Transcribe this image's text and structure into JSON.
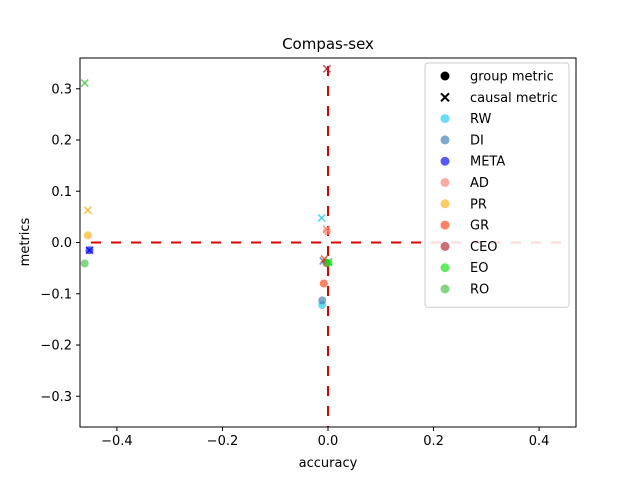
{
  "chart_data": {
    "type": "scatter",
    "title": "Compas-sex",
    "xlabel": "accuracy",
    "ylabel": "metrics",
    "xlim": [
      -0.47,
      0.47
    ],
    "ylim": [
      -0.36,
      0.36
    ],
    "xticks": [
      -0.4,
      -0.2,
      0.0,
      0.2,
      0.4
    ],
    "xtick_labels": [
      "−0.4",
      "−0.2",
      "0.0",
      "0.2",
      "0.4"
    ],
    "yticks": [
      -0.3,
      -0.2,
      -0.1,
      0.0,
      0.1,
      0.2,
      0.3
    ],
    "ytick_labels": [
      "−0.3",
      "−0.2",
      "−0.1",
      "0.0",
      "0.1",
      "0.2",
      "0.3"
    ],
    "grid": false,
    "legend_placement": "top-right",
    "reference_lines": {
      "color": "#e00000",
      "style": "dashed",
      "x": 0.0,
      "y": 0.0
    },
    "legend_markers": [
      {
        "label": "group metric",
        "marker": "circle"
      },
      {
        "label": "causal metric",
        "marker": "cross"
      }
    ],
    "series": [
      {
        "name": "RW",
        "color": "#1ec8f0",
        "group_metric": [
          {
            "x": -0.011,
            "y": -0.122
          }
        ],
        "causal_metric": [
          {
            "x": -0.012,
            "y": 0.048
          }
        ]
      },
      {
        "name": "DI",
        "color": "#3a7ab0",
        "group_metric": [
          {
            "x": -0.011,
            "y": -0.113
          }
        ],
        "causal_metric": [
          {
            "x": -0.009,
            "y": -0.036
          }
        ]
      },
      {
        "name": "META",
        "color": "#0000ee",
        "group_metric": [
          {
            "x": -0.452,
            "y": -0.015
          }
        ],
        "causal_metric": [
          {
            "x": -0.452,
            "y": -0.015
          }
        ]
      },
      {
        "name": "AD",
        "color": "#f88070",
        "group_metric": [
          {
            "x": -0.002,
            "y": 0.022
          }
        ],
        "causal_metric": [
          {
            "x": -0.003,
            "y": 0.026
          }
        ]
      },
      {
        "name": "PR",
        "color": "#f8b010",
        "group_metric": [
          {
            "x": -0.455,
            "y": 0.014
          }
        ],
        "causal_metric": [
          {
            "x": -0.455,
            "y": 0.063
          }
        ]
      },
      {
        "name": "GR",
        "color": "#f84010",
        "group_metric": [
          {
            "x": -0.008,
            "y": -0.08
          }
        ],
        "causal_metric": [
          {
            "x": -0.007,
            "y": -0.032
          }
        ]
      },
      {
        "name": "CEO",
        "color": "#b02030",
        "group_metric": [
          {
            "x": -0.003,
            "y": -0.04
          }
        ],
        "causal_metric": [
          {
            "x": -0.002,
            "y": 0.339
          }
        ]
      },
      {
        "name": "EO",
        "color": "#10e010",
        "group_metric": [
          {
            "x": 0.001,
            "y": -0.04
          }
        ],
        "causal_metric": [
          {
            "x": 0.001,
            "y": -0.038
          }
        ]
      },
      {
        "name": "RO",
        "color": "#40c040",
        "group_metric": [
          {
            "x": -0.461,
            "y": -0.041
          }
        ],
        "causal_metric": [
          {
            "x": -0.461,
            "y": 0.311
          }
        ]
      }
    ]
  }
}
